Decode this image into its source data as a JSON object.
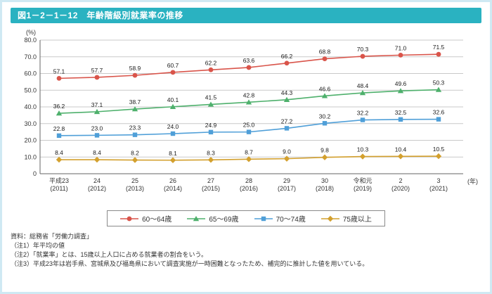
{
  "header": {
    "title": "図1－2－1－12　年齢階級別就業率の推移"
  },
  "chart_data": {
    "type": "line",
    "title": "年齢階級別就業率の推移",
    "ylabel": "(%)",
    "xlabel": "(年)",
    "ylim": [
      0,
      80
    ],
    "yticks": [
      0,
      10,
      20,
      30,
      40,
      50,
      60,
      70,
      80
    ],
    "ytick_labels": [
      "0",
      "10.0",
      "20.0",
      "30.0",
      "40.0",
      "50.0",
      "60.0",
      "70.0",
      "80.0"
    ],
    "grid": true,
    "legend_position": "bottom",
    "categories": [
      [
        "平成23",
        "(2011)"
      ],
      [
        "24",
        "(2012)"
      ],
      [
        "25",
        "(2013)"
      ],
      [
        "26",
        "(2014)"
      ],
      [
        "27",
        "(2015)"
      ],
      [
        "28",
        "(2016)"
      ],
      [
        "29",
        "(2017)"
      ],
      [
        "30",
        "(2018)"
      ],
      [
        "令和元",
        "(2019)"
      ],
      [
        "2",
        "(2020)"
      ],
      [
        "3",
        "(2021)"
      ]
    ],
    "series": [
      {
        "name": "60〜64歳",
        "marker": "circle",
        "color": "#d9544a",
        "values": [
          57.1,
          57.7,
          58.9,
          60.7,
          62.2,
          63.6,
          66.2,
          68.8,
          70.3,
          71.0,
          71.5
        ]
      },
      {
        "name": "65〜69歳",
        "marker": "triangle",
        "color": "#4eb06c",
        "values": [
          36.2,
          37.1,
          38.7,
          40.1,
          41.5,
          42.8,
          44.3,
          46.6,
          48.4,
          49.6,
          50.3
        ]
      },
      {
        "name": "70〜74歳",
        "marker": "square",
        "color": "#4f9fd8",
        "values": [
          22.8,
          23.0,
          23.3,
          24.0,
          24.9,
          25.0,
          27.2,
          30.2,
          32.2,
          32.5,
          32.6
        ]
      },
      {
        "name": "75歳以上",
        "marker": "diamond",
        "color": "#d3a02e",
        "values": [
          8.4,
          8.4,
          8.2,
          8.1,
          8.3,
          8.7,
          9.0,
          9.8,
          10.3,
          10.4,
          10.5
        ]
      }
    ],
    "colors": {
      "title_bar": "#2ab2c1",
      "frame_border": "#cfe9f3",
      "gridline": "#c9c9c9",
      "axis": "#666666"
    }
  },
  "notes": {
    "lines": [
      "資料：総務省「労働力調査」",
      "（注1）年平均の値",
      "（注2）「就業率」とは、15歳以上人口に占める就業者の割合をいう。",
      "（注3）平成23年は岩手県、宮城県及び福島県において調査実施が一時困難となったため、補完的に推計した値を用いている。"
    ]
  }
}
